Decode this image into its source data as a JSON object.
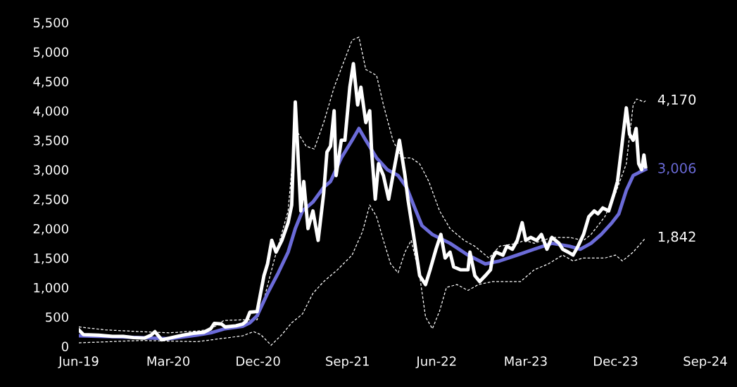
{
  "chart_data": {
    "type": "line",
    "xlim": [
      "2019-06-01",
      "2024-09-01"
    ],
    "xticks": [
      {
        "value": "2019-06-01",
        "label": "Jun-19"
      },
      {
        "value": "2020-03-01",
        "label": "Mar-20"
      },
      {
        "value": "2020-12-01",
        "label": "Dec-20"
      },
      {
        "value": "2021-09-01",
        "label": "Sep-21"
      },
      {
        "value": "2022-06-01",
        "label": "Jun-22"
      },
      {
        "value": "2023-03-01",
        "label": "Mar-23"
      },
      {
        "value": "2023-12-01",
        "label": "Dec-23"
      },
      {
        "value": "2024-09-01",
        "label": "Sep-24"
      }
    ],
    "ylim": [
      0,
      5500
    ],
    "yticks": [
      {
        "value": 0,
        "label": "0"
      },
      {
        "value": 500,
        "label": "500"
      },
      {
        "value": 1000,
        "label": "1,000"
      },
      {
        "value": 1500,
        "label": "1,500"
      },
      {
        "value": 2000,
        "label": "2,000"
      },
      {
        "value": 2500,
        "label": "2,500"
      },
      {
        "value": 3000,
        "label": "3,000"
      },
      {
        "value": 3500,
        "label": "3,500"
      },
      {
        "value": 4000,
        "label": "4,000"
      },
      {
        "value": 4500,
        "label": "4,500"
      },
      {
        "value": 5000,
        "label": "5,000"
      },
      {
        "value": 5500,
        "label": "5,500"
      }
    ],
    "grid": false,
    "marker": "none",
    "series": [
      {
        "color": "#ffffff",
        "line_style": "dashed",
        "x": [
          "2019-06-01",
          "2019-08-21",
          "2019-12-08",
          "2020-03-02",
          "2020-05-28",
          "2020-07-09",
          "2020-08-18",
          "2020-10-15",
          "2020-11-28",
          "2020-12-19",
          "2021-01-21",
          "2021-03-03",
          "2021-03-25",
          "2021-04-27",
          "2021-05-22",
          "2021-06-20",
          "2021-07-22",
          "2021-09-15",
          "2021-10-06",
          "2021-10-27",
          "2021-11-29",
          "2021-12-20",
          "2022-01-18",
          "2022-02-13",
          "2022-03-15",
          "2022-04-10",
          "2022-05-08",
          "2022-06-10",
          "2022-07-12",
          "2022-08-24",
          "2022-09-26",
          "2022-11-08",
          "2022-12-11",
          "2023-02-03",
          "2023-02-25",
          "2023-03-27",
          "2023-05-20",
          "2023-07-13",
          "2023-08-25",
          "2023-09-17",
          "2023-10-29",
          "2023-12-01",
          "2024-01-03",
          "2024-01-24",
          "2024-02-04",
          "2024-02-26",
          "2024-03-02"
        ],
        "values": [
          330,
          280,
          250,
          230,
          260,
          290,
          440,
          450,
          450,
          800,
          1500,
          2300,
          3700,
          3400,
          3350,
          3800,
          4400,
          5200,
          5250,
          4700,
          4600,
          4100,
          3500,
          3200,
          3200,
          3100,
          2800,
          2300,
          2000,
          1800,
          1700,
          1500,
          1700,
          1750,
          1800,
          1750,
          1850,
          1850,
          1800,
          1900,
          2200,
          2600,
          3100,
          4100,
          4200,
          4150,
          4170
        ]
      },
      {
        "color": "#ffffff",
        "line_style": "dashed",
        "x": [
          "2019-06-01",
          "2019-12-08",
          "2020-05-28",
          "2020-08-22",
          "2020-10-15",
          "2020-11-17",
          "2020-12-09",
          "2021-01-10",
          "2021-02-12",
          "2021-03-14",
          "2021-04-16",
          "2021-05-18",
          "2021-06-20",
          "2021-08-01",
          "2021-09-15",
          "2021-10-17",
          "2021-11-08",
          "2021-11-29",
          "2021-12-20",
          "2022-01-11",
          "2022-02-03",
          "2022-02-24",
          "2022-03-15",
          "2022-04-10",
          "2022-04-28",
          "2022-05-19",
          "2022-06-10",
          "2022-07-01",
          "2022-08-02",
          "2022-09-05",
          "2022-10-07",
          "2022-11-19",
          "2023-01-02",
          "2023-02-13",
          "2023-03-27",
          "2023-05-09",
          "2023-06-22",
          "2023-07-24",
          "2023-08-25",
          "2023-10-29",
          "2023-12-01",
          "2023-12-22",
          "2024-01-24",
          "2024-03-02"
        ],
        "values": [
          60,
          100,
          80,
          140,
          180,
          250,
          200,
          20,
          200,
          400,
          550,
          900,
          1100,
          1300,
          1550,
          1950,
          2400,
          2200,
          1800,
          1400,
          1250,
          1600,
          1800,
          1200,
          500,
          300,
          600,
          1000,
          1050,
          950,
          1050,
          1100,
          1100,
          1100,
          1300,
          1400,
          1550,
          1450,
          1500,
          1500,
          1550,
          1450,
          1600,
          1842
        ]
      },
      {
        "color": "#6b6bd8",
        "line_style": "solid",
        "x": [
          "2019-06-01",
          "2019-12-08",
          "2020-03-02",
          "2020-05-28",
          "2020-07-09",
          "2020-08-22",
          "2020-10-15",
          "2020-11-06",
          "2020-11-28",
          "2020-12-30",
          "2021-02-01",
          "2021-03-03",
          "2021-03-25",
          "2021-04-16",
          "2021-05-18",
          "2021-06-20",
          "2021-07-11",
          "2021-08-13",
          "2021-09-15",
          "2021-10-06",
          "2021-10-27",
          "2021-11-29",
          "2022-01-01",
          "2022-02-03",
          "2022-03-01",
          "2022-03-26",
          "2022-04-17",
          "2022-05-19",
          "2022-07-12",
          "2022-09-05",
          "2022-10-28",
          "2022-12-11",
          "2023-02-03",
          "2023-03-27",
          "2023-05-20",
          "2023-07-13",
          "2023-08-15",
          "2023-09-17",
          "2023-10-18",
          "2023-11-20",
          "2023-12-11",
          "2024-01-03",
          "2024-01-24",
          "2024-02-10",
          "2024-03-02"
        ],
        "values": [
          180,
          150,
          130,
          190,
          230,
          300,
          340,
          400,
          520,
          900,
          1250,
          1600,
          2000,
          2300,
          2450,
          2700,
          2800,
          3200,
          3500,
          3700,
          3500,
          3200,
          3000,
          2900,
          2700,
          2350,
          2050,
          1900,
          1750,
          1550,
          1400,
          1450,
          1550,
          1650,
          1750,
          1700,
          1650,
          1750,
          1900,
          2100,
          2250,
          2650,
          2900,
          2950,
          3006
        ]
      },
      {
        "color": "#ffffff",
        "line_style": "solid",
        "x": [
          "2019-06-01",
          "2019-06-15",
          "2019-08-01",
          "2019-09-12",
          "2019-10-15",
          "2019-11-15",
          "2019-12-18",
          "2020-01-08",
          "2020-01-20",
          "2020-02-10",
          "2020-03-12",
          "2020-04-15",
          "2020-05-16",
          "2020-06-18",
          "2020-07-09",
          "2020-07-20",
          "2020-08-11",
          "2020-08-22",
          "2020-09-24",
          "2020-10-15",
          "2020-10-26",
          "2020-11-06",
          "2020-11-28",
          "2020-12-19",
          "2020-12-30",
          "2021-01-12",
          "2021-01-25",
          "2021-02-12",
          "2021-03-03",
          "2021-03-14",
          "2021-03-25",
          "2021-04-11",
          "2021-04-20",
          "2021-05-03",
          "2021-05-18",
          "2021-06-03",
          "2021-06-20",
          "2021-06-30",
          "2021-07-11",
          "2021-07-22",
          "2021-07-28",
          "2021-08-13",
          "2021-08-24",
          "2021-09-08",
          "2021-09-19",
          "2021-10-02",
          "2021-10-12",
          "2021-10-27",
          "2021-11-08",
          "2021-11-14",
          "2021-11-25",
          "2021-12-05",
          "2021-12-20",
          "2022-01-05",
          "2022-01-18",
          "2022-02-07",
          "2022-02-24",
          "2022-03-05",
          "2022-03-22",
          "2022-04-10",
          "2022-04-28",
          "2022-05-12",
          "2022-05-30",
          "2022-06-14",
          "2022-06-27",
          "2022-07-12",
          "2022-07-23",
          "2022-08-14",
          "2022-09-05",
          "2022-09-11",
          "2022-09-26",
          "2022-10-11",
          "2022-10-28",
          "2022-11-13",
          "2022-11-19",
          "2022-11-30",
          "2022-12-21",
          "2023-01-02",
          "2023-01-19",
          "2023-02-03",
          "2023-02-18",
          "2023-03-01",
          "2023-03-16",
          "2023-04-03",
          "2023-04-18",
          "2023-05-05",
          "2023-05-20",
          "2023-06-11",
          "2023-06-22",
          "2023-07-09",
          "2023-07-24",
          "2023-08-08",
          "2023-08-25",
          "2023-09-10",
          "2023-09-27",
          "2023-10-08",
          "2023-10-23",
          "2023-11-10",
          "2023-11-27",
          "2023-12-07",
          "2023-12-18",
          "2024-01-03",
          "2024-01-13",
          "2024-01-24",
          "2024-02-02",
          "2024-02-10",
          "2024-02-19",
          "2024-02-26",
          "2024-03-02"
        ],
        "values": [
          280,
          200,
          190,
          170,
          170,
          150,
          140,
          190,
          250,
          110,
          150,
          190,
          220,
          240,
          300,
          390,
          380,
          330,
          350,
          380,
          430,
          580,
          590,
          1200,
          1400,
          1800,
          1600,
          1800,
          2100,
          2400,
          4150,
          2300,
          2800,
          2000,
          2300,
          1800,
          2600,
          3300,
          3400,
          4000,
          2900,
          3500,
          3500,
          4400,
          4800,
          4100,
          4400,
          3800,
          4000,
          3300,
          2500,
          3100,
          2900,
          2500,
          2900,
          3500,
          2900,
          2500,
          1900,
          1200,
          1050,
          1300,
          1650,
          1900,
          1500,
          1600,
          1350,
          1300,
          1300,
          1600,
          1200,
          1100,
          1200,
          1300,
          1500,
          1600,
          1550,
          1700,
          1650,
          1800,
          2100,
          1800,
          1850,
          1800,
          1900,
          1650,
          1850,
          1750,
          1650,
          1600,
          1550,
          1700,
          1900,
          2200,
          2300,
          2250,
          2350,
          2300,
          2600,
          2800,
          3300,
          4050,
          3600,
          3500,
          3700,
          3100,
          3000,
          3250,
          3050
        ]
      }
    ],
    "annotations": [
      {
        "text": "4,170",
        "x": "2024-03-02",
        "y": 4170
      },
      {
        "text": "3,006",
        "x": "2024-03-02",
        "y": 3006
      },
      {
        "text": "1,842",
        "x": "2024-03-02",
        "y": 1842
      }
    ]
  }
}
